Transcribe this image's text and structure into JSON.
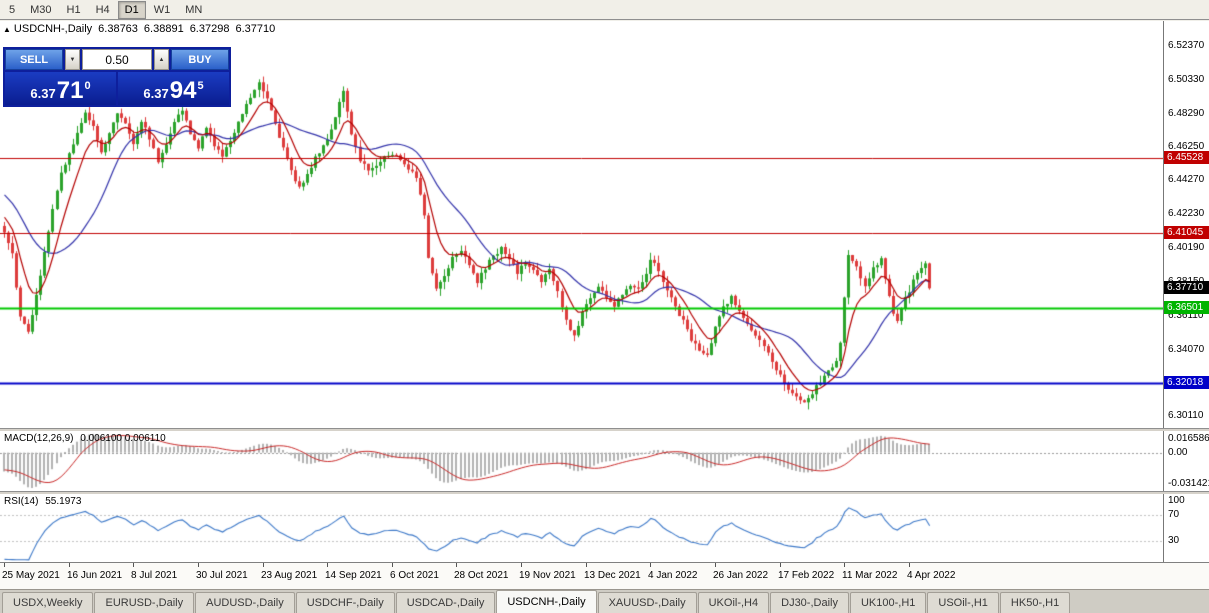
{
  "icons": {
    "collapse": "▲",
    "spin_down": "▼",
    "spin_up": "▲"
  },
  "toolbar": {
    "periods": [
      "5",
      "M30",
      "H1",
      "H4",
      "D1",
      "W1",
      "MN"
    ],
    "active": "D1"
  },
  "chart_header": {
    "symbol": "USDCNH-,Daily",
    "open": "6.38763",
    "high": "6.38891",
    "low": "6.37298",
    "close": "6.37710"
  },
  "one_click": {
    "sell_label": "SELL",
    "buy_label": "BUY",
    "volume": "0.50",
    "sell_price": {
      "base": "6.37",
      "big": "71",
      "sup": "0"
    },
    "buy_price": {
      "base": "6.37",
      "big": "94",
      "sup": "5"
    }
  },
  "price_scale": {
    "labels": [
      "6.52370",
      "6.50330",
      "6.48290",
      "6.46250",
      "6.44270",
      "6.42230",
      "6.40190",
      "6.38150",
      "6.36110",
      "6.34070",
      "6.32030",
      "6.30110"
    ],
    "badges": [
      {
        "text": "6.45528",
        "color": "#c00000"
      },
      {
        "text": "6.41045",
        "color": "#c00000"
      },
      {
        "text": "6.36501",
        "color": "#00b400"
      },
      {
        "text": "6.32018",
        "color": "#0000c8"
      }
    ],
    "current": {
      "text": "6.37710",
      "color": "#000000"
    }
  },
  "macd_panel": {
    "label": "MACD(12,26,9)",
    "values": "0.006100 0.006110",
    "scale_top": "0.016586",
    "scale_zero": "0.00",
    "scale_bottom": "-0.031421"
  },
  "rsi_panel": {
    "label": "RSI(14)",
    "value": "55.1973",
    "scale_top": "100",
    "scale_70": "70",
    "scale_30": "30"
  },
  "date_axis": {
    "dates": [
      "25 May 2021",
      "16 Jun 2021",
      "8 Jul 2021",
      "30 Jul 2021",
      "23 Aug 2021",
      "14 Sep 2021",
      "6 Oct 2021",
      "28 Oct 2021",
      "19 Nov 2021",
      "13 Dec 2021",
      "4 Jan 2022",
      "26 Jan 2022",
      "17 Feb 2022",
      "11 Mar 2022",
      "4 Apr 2022"
    ]
  },
  "tabs": {
    "items": [
      "USDX,Weekly",
      "EURUSD-,Daily",
      "AUDUSD-,Daily",
      "USDCHF-,Daily",
      "USDCAD-,Daily",
      "USDCNH-,Daily",
      "XAUUSD-,Daily",
      "UKOil-,H4",
      "DJ30-,Daily",
      "UK100-,H1",
      "USOil-,H1",
      "HK50-,H1"
    ],
    "active_index": 5
  },
  "chart_data": {
    "type": "candlestick",
    "symbol": "USDCNH-",
    "timeframe": "Daily",
    "ohlc_current": {
      "open": 6.38763,
      "high": 6.38891,
      "low": 6.37298,
      "close": 6.3771
    },
    "price_axis_range": [
      6.293,
      6.538
    ],
    "n_candles": 230,
    "jitter": 0.003,
    "preroll": {
      "n": 30,
      "from": 6.478,
      "to": 6.415
    },
    "close_path_anchors": [
      [
        0,
        6.412
      ],
      [
        2,
        6.398
      ],
      [
        4,
        6.36
      ],
      [
        6,
        6.352
      ],
      [
        8,
        6.372
      ],
      [
        10,
        6.4
      ],
      [
        12,
        6.424
      ],
      [
        14,
        6.446
      ],
      [
        17,
        6.464
      ],
      [
        20,
        6.482
      ],
      [
        22,
        6.476
      ],
      [
        24,
        6.458
      ],
      [
        26,
        6.47
      ],
      [
        28,
        6.483
      ],
      [
        30,
        6.477
      ],
      [
        32,
        6.465
      ],
      [
        34,
        6.478
      ],
      [
        36,
        6.468
      ],
      [
        38,
        6.453
      ],
      [
        40,
        6.465
      ],
      [
        42,
        6.478
      ],
      [
        44,
        6.484
      ],
      [
        46,
        6.47
      ],
      [
        48,
        6.462
      ],
      [
        50,
        6.473
      ],
      [
        52,
        6.464
      ],
      [
        54,
        6.456
      ],
      [
        56,
        6.466
      ],
      [
        58,
        6.478
      ],
      [
        60,
        6.488
      ],
      [
        62,
        6.497
      ],
      [
        63,
        6.502
      ],
      [
        65,
        6.492
      ],
      [
        67,
        6.477
      ],
      [
        69,
        6.461
      ],
      [
        71,
        6.447
      ],
      [
        73,
        6.438
      ],
      [
        75,
        6.446
      ],
      [
        77,
        6.455
      ],
      [
        79,
        6.463
      ],
      [
        81,
        6.473
      ],
      [
        83,
        6.489
      ],
      [
        84,
        6.495
      ],
      [
        86,
        6.469
      ],
      [
        88,
        6.455
      ],
      [
        90,
        6.448
      ],
      [
        92,
        6.452
      ],
      [
        94,
        6.456
      ],
      [
        96,
        6.458
      ],
      [
        98,
        6.455
      ],
      [
        100,
        6.45
      ],
      [
        102,
        6.445
      ],
      [
        104,
        6.42
      ],
      [
        105,
        6.396
      ],
      [
        107,
        6.377
      ],
      [
        109,
        6.385
      ],
      [
        111,
        6.396
      ],
      [
        113,
        6.401
      ],
      [
        115,
        6.392
      ],
      [
        117,
        6.381
      ],
      [
        119,
        6.389
      ],
      [
        121,
        6.397
      ],
      [
        123,
        6.401
      ],
      [
        125,
        6.394
      ],
      [
        127,
        6.387
      ],
      [
        129,
        6.392
      ],
      [
        131,
        6.388
      ],
      [
        133,
        6.382
      ],
      [
        135,
        6.388
      ],
      [
        137,
        6.375
      ],
      [
        139,
        6.357
      ],
      [
        141,
        6.348
      ],
      [
        143,
        6.363
      ],
      [
        145,
        6.372
      ],
      [
        147,
        6.378
      ],
      [
        149,
        6.372
      ],
      [
        151,
        6.366
      ],
      [
        153,
        6.374
      ],
      [
        155,
        6.38
      ],
      [
        157,
        6.377
      ],
      [
        159,
        6.387
      ],
      [
        160,
        6.395
      ],
      [
        162,
        6.388
      ],
      [
        164,
        6.376
      ],
      [
        166,
        6.366
      ],
      [
        168,
        6.357
      ],
      [
        170,
        6.347
      ],
      [
        172,
        6.339
      ],
      [
        174,
        6.336
      ],
      [
        176,
        6.353
      ],
      [
        178,
        6.366
      ],
      [
        180,
        6.372
      ],
      [
        182,
        6.363
      ],
      [
        184,
        6.355
      ],
      [
        186,
        6.349
      ],
      [
        188,
        6.341
      ],
      [
        190,
        6.333
      ],
      [
        192,
        6.325
      ],
      [
        194,
        6.317
      ],
      [
        196,
        6.311
      ],
      [
        198,
        6.307
      ],
      [
        200,
        6.314
      ],
      [
        202,
        6.321
      ],
      [
        204,
        6.327
      ],
      [
        206,
        6.333
      ],
      [
        207,
        6.344
      ],
      [
        208,
        6.371
      ],
      [
        209,
        6.397
      ],
      [
        211,
        6.389
      ],
      [
        213,
        6.379
      ],
      [
        215,
        6.389
      ],
      [
        217,
        6.395
      ],
      [
        218,
        6.384
      ],
      [
        219,
        6.371
      ],
      [
        220,
        6.361
      ],
      [
        221,
        6.356
      ],
      [
        222,
        6.366
      ],
      [
        224,
        6.376
      ],
      [
        226,
        6.386
      ],
      [
        228,
        6.391
      ],
      [
        229,
        6.3771
      ]
    ],
    "levels": [
      {
        "price": 6.45528,
        "color": "#c00000",
        "width": 1
      },
      {
        "price": 6.41045,
        "color": "#c00000",
        "width": 1
      },
      {
        "price": 6.36501,
        "color": "#00c800",
        "width": 2
      },
      {
        "price": 6.32018,
        "color": "#0000c8",
        "width": 2
      }
    ],
    "current_price": 6.3771,
    "colors": {
      "bull": "#2ba32b",
      "bear": "#dd3c3c",
      "ma_fast": "#b40000",
      "ma_slow": "#3232aa",
      "macd_hist": "#b2b2b2",
      "macd_signal": "#c82828",
      "rsi": "#3c78c8",
      "dotted": "#c0c0c0"
    },
    "ma_fast_period": 8,
    "ma_slow_period": 20,
    "macd": {
      "fast": 12,
      "slow": 26,
      "signal": 9,
      "display_main": 0.0061,
      "display_signal": 0.00611,
      "scale_max": 0.016586,
      "scale_min": -0.031421
    },
    "rsi": {
      "period": 14,
      "value": 55.1973,
      "levels": [
        70,
        30
      ]
    }
  }
}
